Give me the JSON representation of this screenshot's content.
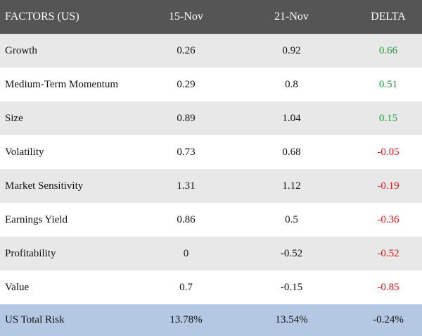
{
  "table": {
    "headers": [
      "FACTORS (US)",
      "15-Nov",
      "21-Nov",
      "DELTA"
    ],
    "rows": [
      {
        "factor": "Growth",
        "nov15": "0.26",
        "nov21": "0.92",
        "delta": "0.66",
        "delta_sign": "positive"
      },
      {
        "factor": "Medium-Term Momentum",
        "nov15": "0.29",
        "nov21": "0.8",
        "delta": "0.51",
        "delta_sign": "positive"
      },
      {
        "factor": "Size",
        "nov15": "0.89",
        "nov21": "1.04",
        "delta": "0.15",
        "delta_sign": "positive"
      },
      {
        "factor": "Volatility",
        "nov15": "0.73",
        "nov21": "0.68",
        "delta": "-0.05",
        "delta_sign": "negative"
      },
      {
        "factor": "Market Sensitivity",
        "nov15": "1.31",
        "nov21": "1.12",
        "delta": "-0.19",
        "delta_sign": "negative"
      },
      {
        "factor": "Earnings Yield",
        "nov15": "0.86",
        "nov21": "0.5",
        "delta": "-0.36",
        "delta_sign": "negative"
      },
      {
        "factor": "Profitability",
        "nov15": "0",
        "nov21": "-0.52",
        "delta": "-0.52",
        "delta_sign": "negative"
      },
      {
        "factor": "Value",
        "nov15": "0.7",
        "nov21": "-0.15",
        "delta": "-0.85",
        "delta_sign": "negative"
      }
    ],
    "total": {
      "factor": "US Total Risk",
      "nov15": "13.78%",
      "nov21": "13.54%",
      "delta": "-0.24%"
    }
  },
  "colors": {
    "header_bg": "#555555",
    "header_text": "#ffffff",
    "row_shade": "#e8e8e8",
    "total_bg": "#b4c8e4",
    "positive": "#1f9a3d",
    "negative": "#e0161b"
  }
}
